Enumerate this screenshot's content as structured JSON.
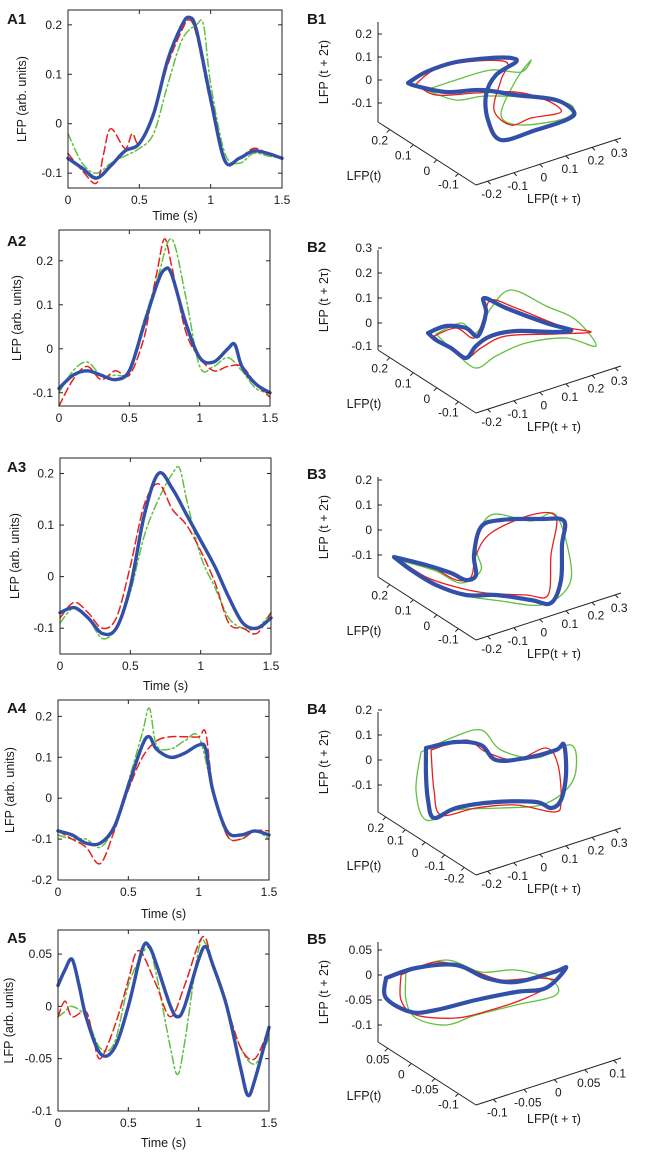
{
  "figure": {
    "colors": {
      "blue": "#3350A8",
      "red": "#E8201C",
      "green": "#62C140",
      "axis": "#222222"
    },
    "series_names": [
      "blue-thick",
      "red-dashed",
      "green-dashdot"
    ]
  },
  "chart_data": [
    {
      "id": "A1",
      "type": "line",
      "label": "A1",
      "xlabel": "Time (s)",
      "ylabel": "LFP (arb. units)",
      "xlim": [
        0,
        1.5
      ],
      "ylim": [
        -0.13,
        0.23
      ],
      "xticks": [
        0,
        0.5,
        1,
        1.5
      ],
      "xtick_labels": [
        "0",
        "0.5",
        "1",
        "1.5"
      ],
      "yticks": [
        -0.1,
        0,
        0.1,
        0.2
      ],
      "ytick_labels": [
        "-0.1",
        "0",
        "0.1",
        "0.2"
      ],
      "series": [
        {
          "name": "blue",
          "style": "solid-thick",
          "x": [
            0,
            0.1,
            0.2,
            0.3,
            0.4,
            0.5,
            0.6,
            0.7,
            0.8,
            0.85,
            0.9,
            1.0,
            1.1,
            1.2,
            1.3,
            1.4,
            1.5
          ],
          "y": [
            -0.07,
            -0.09,
            -0.11,
            -0.085,
            -0.055,
            -0.04,
            0.02,
            0.13,
            0.2,
            0.215,
            0.19,
            0.05,
            -0.075,
            -0.07,
            -0.055,
            -0.06,
            -0.07
          ]
        },
        {
          "name": "red",
          "style": "dashed",
          "x": [
            0,
            0.1,
            0.2,
            0.25,
            0.3,
            0.4,
            0.45,
            0.5,
            0.6,
            0.7,
            0.8,
            0.85,
            0.9,
            1.0,
            1.1,
            1.2,
            1.3,
            1.4,
            1.5
          ],
          "y": [
            -0.06,
            -0.095,
            -0.12,
            -0.06,
            -0.01,
            -0.05,
            -0.02,
            -0.04,
            0.02,
            0.12,
            0.19,
            0.21,
            0.18,
            0.04,
            -0.075,
            -0.07,
            -0.05,
            -0.06,
            -0.07
          ]
        },
        {
          "name": "green",
          "style": "dashdot",
          "x": [
            0,
            0.1,
            0.2,
            0.3,
            0.4,
            0.5,
            0.6,
            0.7,
            0.8,
            0.9,
            0.95,
            1.0,
            1.1,
            1.2,
            1.3,
            1.4,
            1.5
          ],
          "y": [
            -0.02,
            -0.08,
            -0.1,
            -0.08,
            -0.065,
            -0.05,
            -0.02,
            0.08,
            0.17,
            0.2,
            0.2,
            0.08,
            -0.06,
            -0.08,
            -0.06,
            -0.065,
            -0.07
          ]
        }
      ]
    },
    {
      "id": "A2",
      "type": "line",
      "label": "A2",
      "xlabel": "",
      "ylabel": "LFP (arb. units)",
      "xlim": [
        0,
        1.5
      ],
      "ylim": [
        -0.13,
        0.27
      ],
      "xticks": [
        0,
        0.5,
        1,
        1.5
      ],
      "xtick_labels": [
        "0",
        "0.5",
        "1",
        "1.5"
      ],
      "yticks": [
        -0.1,
        0,
        0.1,
        0.2
      ],
      "ytick_labels": [
        "-0.1",
        "0",
        "0.1",
        "0.2"
      ],
      "series": [
        {
          "name": "blue",
          "style": "solid-thick",
          "x": [
            0,
            0.1,
            0.2,
            0.3,
            0.4,
            0.5,
            0.6,
            0.7,
            0.75,
            0.8,
            0.9,
            1.0,
            1.1,
            1.2,
            1.25,
            1.3,
            1.4,
            1.5
          ],
          "y": [
            -0.09,
            -0.06,
            -0.05,
            -0.06,
            -0.07,
            -0.05,
            0.05,
            0.15,
            0.18,
            0.17,
            0.06,
            -0.02,
            -0.03,
            0.0,
            0.01,
            -0.04,
            -0.08,
            -0.1
          ]
        },
        {
          "name": "red",
          "style": "dashed",
          "x": [
            0,
            0.1,
            0.2,
            0.3,
            0.4,
            0.5,
            0.6,
            0.65,
            0.7,
            0.75,
            0.8,
            0.9,
            1.0,
            1.1,
            1.2,
            1.3,
            1.4,
            1.5
          ],
          "y": [
            -0.13,
            -0.07,
            -0.04,
            -0.07,
            -0.05,
            -0.06,
            0.02,
            0.1,
            0.18,
            0.25,
            0.19,
            0.04,
            -0.02,
            -0.05,
            -0.04,
            -0.04,
            -0.08,
            -0.11
          ]
        },
        {
          "name": "green",
          "style": "dashdot",
          "x": [
            0,
            0.1,
            0.2,
            0.3,
            0.4,
            0.5,
            0.6,
            0.7,
            0.8,
            0.9,
            1.0,
            1.1,
            1.2,
            1.3,
            1.4,
            1.5
          ],
          "y": [
            -0.1,
            -0.05,
            -0.03,
            -0.06,
            -0.06,
            -0.05,
            0.06,
            0.16,
            0.25,
            0.12,
            -0.04,
            -0.04,
            -0.02,
            -0.05,
            -0.09,
            -0.1
          ]
        }
      ]
    },
    {
      "id": "A3",
      "type": "line",
      "label": "A3",
      "xlabel": "Time (s)",
      "ylabel": "LFP (arb. units)",
      "xlim": [
        0,
        1.5
      ],
      "ylim": [
        -0.15,
        0.23
      ],
      "xticks": [
        0,
        0.5,
        1,
        1.5
      ],
      "xtick_labels": [
        "0",
        "0.5",
        "1",
        "1.5"
      ],
      "yticks": [
        -0.1,
        0,
        0.1,
        0.2
      ],
      "ytick_labels": [
        "-0.1",
        "0",
        "0.1",
        "0.2"
      ],
      "series": [
        {
          "name": "blue",
          "style": "solid-thick",
          "x": [
            0,
            0.1,
            0.2,
            0.3,
            0.4,
            0.5,
            0.6,
            0.7,
            0.8,
            0.9,
            1.0,
            1.1,
            1.2,
            1.3,
            1.4,
            1.5
          ],
          "y": [
            -0.07,
            -0.06,
            -0.08,
            -0.11,
            -0.1,
            -0.02,
            0.12,
            0.2,
            0.17,
            0.12,
            0.07,
            0.02,
            -0.04,
            -0.09,
            -0.1,
            -0.08
          ]
        },
        {
          "name": "red",
          "style": "dashed",
          "x": [
            0,
            0.1,
            0.2,
            0.3,
            0.4,
            0.5,
            0.6,
            0.7,
            0.8,
            0.9,
            1.0,
            1.1,
            1.2,
            1.3,
            1.4,
            1.5
          ],
          "y": [
            -0.08,
            -0.05,
            -0.07,
            -0.1,
            -0.08,
            0.02,
            0.14,
            0.18,
            0.13,
            0.1,
            0.05,
            -0.01,
            -0.09,
            -0.1,
            -0.11,
            -0.07
          ]
        },
        {
          "name": "green",
          "style": "dashdot",
          "x": [
            0,
            0.1,
            0.2,
            0.3,
            0.4,
            0.5,
            0.6,
            0.7,
            0.8,
            0.85,
            0.9,
            1.0,
            1.1,
            1.2,
            1.3,
            1.4,
            1.5
          ],
          "y": [
            -0.09,
            -0.06,
            -0.08,
            -0.12,
            -0.1,
            -0.03,
            0.08,
            0.15,
            0.2,
            0.21,
            0.15,
            0.04,
            -0.02,
            -0.08,
            -0.1,
            -0.1,
            -0.07
          ]
        }
      ]
    },
    {
      "id": "A4",
      "type": "line",
      "label": "A4",
      "xlabel": "Time (s)",
      "ylabel": "LFP (arb. units)",
      "xlim": [
        0,
        1.5
      ],
      "ylim": [
        -0.2,
        0.24
      ],
      "xticks": [
        0,
        0.5,
        1,
        1.5
      ],
      "xtick_labels": [
        "0",
        "0.5",
        "1",
        "1.5"
      ],
      "yticks": [
        -0.2,
        -0.1,
        0,
        0.1,
        0.2
      ],
      "ytick_labels": [
        "-0.2",
        "-0.1",
        "0",
        "0.1",
        "0.2"
      ],
      "series": [
        {
          "name": "blue",
          "style": "solid-thick",
          "x": [
            0,
            0.1,
            0.2,
            0.3,
            0.4,
            0.5,
            0.6,
            0.65,
            0.7,
            0.8,
            0.9,
            1.0,
            1.05,
            1.1,
            1.2,
            1.3,
            1.4,
            1.5
          ],
          "y": [
            -0.08,
            -0.09,
            -0.11,
            -0.11,
            -0.07,
            0.03,
            0.13,
            0.15,
            0.12,
            0.1,
            0.11,
            0.13,
            0.12,
            0.02,
            -0.08,
            -0.09,
            -0.08,
            -0.09
          ]
        },
        {
          "name": "red",
          "style": "dashed",
          "x": [
            0,
            0.1,
            0.2,
            0.3,
            0.4,
            0.5,
            0.6,
            0.7,
            0.8,
            0.9,
            1.0,
            1.05,
            1.1,
            1.2,
            1.3,
            1.4,
            1.5
          ],
          "y": [
            -0.08,
            -0.1,
            -0.12,
            -0.16,
            -0.08,
            0.02,
            0.1,
            0.14,
            0.15,
            0.15,
            0.15,
            0.16,
            0.03,
            -0.09,
            -0.1,
            -0.08,
            -0.08
          ]
        },
        {
          "name": "green",
          "style": "dashdot",
          "x": [
            0,
            0.1,
            0.2,
            0.3,
            0.4,
            0.5,
            0.6,
            0.65,
            0.7,
            0.8,
            0.9,
            1.0,
            1.1,
            1.2,
            1.3,
            1.4,
            1.5
          ],
          "y": [
            -0.09,
            -0.1,
            -0.1,
            -0.12,
            -0.07,
            0.04,
            0.16,
            0.22,
            0.13,
            0.12,
            0.14,
            0.15,
            0.02,
            -0.09,
            -0.1,
            -0.08,
            -0.1
          ]
        }
      ]
    },
    {
      "id": "A5",
      "type": "line",
      "label": "A5",
      "xlabel": "Time (s)",
      "ylabel": "LFP (arb. units)",
      "xlim": [
        0,
        1.5
      ],
      "ylim": [
        -0.1,
        0.073
      ],
      "xticks": [
        0,
        0.5,
        1,
        1.5
      ],
      "xtick_labels": [
        "0",
        "0.5",
        "1",
        "1.5"
      ],
      "yticks": [
        -0.1,
        -0.05,
        0,
        0.05
      ],
      "ytick_labels": [
        "-0.1",
        "-0.05",
        "0",
        "0.05"
      ],
      "series": [
        {
          "name": "blue",
          "style": "solid-thick",
          "x": [
            0,
            0.05,
            0.1,
            0.15,
            0.2,
            0.3,
            0.4,
            0.5,
            0.6,
            0.65,
            0.7,
            0.8,
            0.85,
            0.9,
            1.0,
            1.05,
            1.1,
            1.2,
            1.3,
            1.35,
            1.4,
            1.5
          ],
          "y": [
            0.02,
            0.035,
            0.045,
            0.02,
            -0.01,
            -0.045,
            -0.04,
            0.0,
            0.055,
            0.057,
            0.04,
            0.0,
            -0.01,
            0.0,
            0.045,
            0.057,
            0.04,
            0.0,
            -0.06,
            -0.085,
            -0.07,
            -0.02
          ]
        },
        {
          "name": "red",
          "style": "dashed",
          "x": [
            0,
            0.05,
            0.1,
            0.2,
            0.25,
            0.3,
            0.4,
            0.5,
            0.55,
            0.6,
            0.7,
            0.8,
            0.9,
            1.0,
            1.05,
            1.1,
            1.2,
            1.3,
            1.4,
            1.5
          ],
          "y": [
            -0.01,
            0.005,
            -0.01,
            -0.005,
            -0.03,
            -0.05,
            -0.02,
            0.025,
            0.05,
            0.05,
            0.02,
            -0.01,
            0.02,
            0.06,
            0.065,
            0.04,
            0.0,
            -0.04,
            -0.05,
            -0.02
          ]
        },
        {
          "name": "green",
          "style": "dashdot",
          "x": [
            0,
            0.05,
            0.1,
            0.2,
            0.3,
            0.4,
            0.5,
            0.6,
            0.65,
            0.7,
            0.8,
            0.85,
            0.9,
            1.0,
            1.05,
            1.1,
            1.2,
            1.3,
            1.4,
            1.5
          ],
          "y": [
            -0.01,
            -0.005,
            0.0,
            -0.01,
            -0.04,
            -0.035,
            0.02,
            0.05,
            0.055,
            0.03,
            -0.04,
            -0.065,
            -0.035,
            0.055,
            0.06,
            0.04,
            0.0,
            -0.04,
            -0.055,
            -0.03
          ]
        }
      ]
    },
    {
      "id": "B1",
      "type": "line3d",
      "label": "B1",
      "xlabel": "LFP(t)",
      "ylabel": "LFP(t + τ)",
      "zlabel": "LFP (t + 2τ)",
      "xticks": [
        0.2,
        0.1,
        0,
        -0.1
      ],
      "xtick_labels": [
        "0.2",
        "0.1",
        "0",
        "-0.1"
      ],
      "yticks": [
        -0.2,
        -0.1,
        0,
        0.1,
        0.2,
        0.3
      ],
      "ytick_labels": [
        "-0.2",
        "-0.1",
        "0",
        "0.1",
        "0.2",
        "0.3"
      ],
      "zticks": [
        -0.1,
        0,
        0.1,
        0.2
      ],
      "ztick_labels": [
        "-0.1",
        "0",
        "0.1",
        "0.2"
      ]
    },
    {
      "id": "B2",
      "type": "line3d",
      "label": "B2",
      "xlabel": "LFP(t)",
      "ylabel": "LFP(t + τ)",
      "zlabel": "LFP (t + 2τ)",
      "xticks": [
        0.2,
        0.1,
        0,
        -0.1
      ],
      "xtick_labels": [
        "0.2",
        "0.1",
        "0",
        "-0.1"
      ],
      "yticks": [
        -0.2,
        -0.1,
        0,
        0.1,
        0.2,
        0.3
      ],
      "ytick_labels": [
        "-0.2",
        "-0.1",
        "0",
        "0.1",
        "0.2",
        "0.3"
      ],
      "zticks": [
        -0.1,
        0,
        0.1,
        0.2,
        0.3
      ],
      "ztick_labels": [
        "-0.1",
        "0",
        "0.1",
        "0.2",
        "0.3"
      ]
    },
    {
      "id": "B3",
      "type": "line3d",
      "label": "B3",
      "xlabel": "LFP(t)",
      "ylabel": "LFP(t + τ)",
      "zlabel": "LFP (t + 2τ)",
      "xticks": [
        0.2,
        0.1,
        0,
        -0.1
      ],
      "xtick_labels": [
        "0.2",
        "0.1",
        "0",
        "-0.1"
      ],
      "yticks": [
        -0.2,
        -0.1,
        0,
        0.1,
        0.2,
        0.3
      ],
      "ytick_labels": [
        "-0.2",
        "-0.1",
        "0",
        "0.1",
        "0.2",
        "0.3"
      ],
      "zticks": [
        -0.1,
        0,
        0.1,
        0.2
      ],
      "ztick_labels": [
        "-0.1",
        "0",
        "0.1",
        "0.2"
      ]
    },
    {
      "id": "B4",
      "type": "line3d",
      "label": "B4",
      "xlabel": "LFP(t)",
      "ylabel": "LFP(t + τ)",
      "zlabel": "LFP (t + 2τ)",
      "xticks": [
        0.2,
        0.1,
        0,
        -0.1,
        -0.2
      ],
      "xtick_labels": [
        "0.2",
        "0.1",
        "0",
        "-0.1",
        "-0.2"
      ],
      "yticks": [
        -0.2,
        -0.1,
        0,
        0.1,
        0.2,
        0.3
      ],
      "ytick_labels": [
        "-0.2",
        "-0.1",
        "0",
        "0.1",
        "0.2",
        "0.3"
      ],
      "zticks": [
        -0.1,
        0,
        0.1,
        0.2
      ],
      "ztick_labels": [
        "-0.1",
        "0",
        "0.1",
        "0.2"
      ]
    },
    {
      "id": "B5",
      "type": "line3d",
      "label": "B5",
      "xlabel": "LFP(t)",
      "ylabel": "LFP(t + τ)",
      "zlabel": "LFP (t + 2τ)",
      "xticks": [
        0.05,
        0,
        -0.05,
        -0.1
      ],
      "xtick_labels": [
        "0.05",
        "0",
        "-0.05",
        "-0.1"
      ],
      "yticks": [
        -0.1,
        -0.05,
        0,
        0.05,
        0.1
      ],
      "ytick_labels": [
        "-0.1",
        "-0.05",
        "0",
        "0.05",
        "0.1"
      ],
      "zticks": [
        -0.1,
        -0.05,
        0,
        0.05
      ],
      "ztick_labels": [
        "-0.1",
        "-0.05",
        "0",
        "0.05"
      ]
    }
  ]
}
